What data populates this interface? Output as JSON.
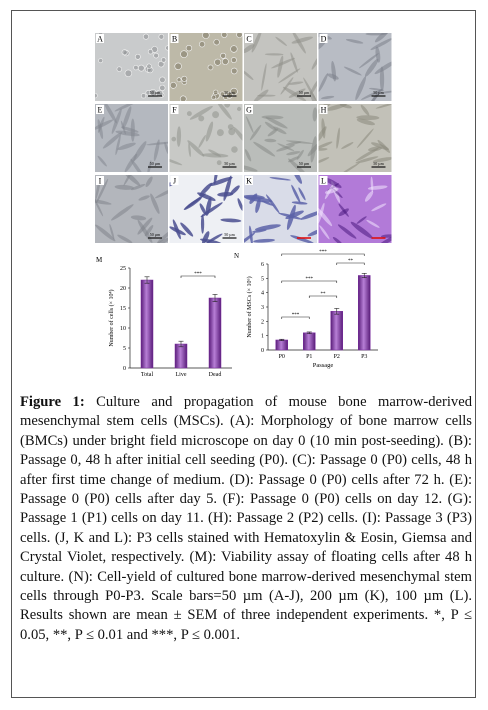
{
  "panels": [
    {
      "label": "A",
      "scale": "50 µm"
    },
    {
      "label": "B",
      "scale": "50 µm"
    },
    {
      "label": "C",
      "scale": "50 µm"
    },
    {
      "label": "D",
      "scale": "50 µm"
    },
    {
      "label": "E",
      "scale": "50 µm"
    },
    {
      "label": "F",
      "scale": "50 µm"
    },
    {
      "label": "G",
      "scale": "50 µm"
    },
    {
      "label": "H",
      "scale": "50 µm"
    },
    {
      "label": "I",
      "scale": "50 µm"
    },
    {
      "label": "J",
      "scale": "50 µm"
    },
    {
      "label": "K"
    },
    {
      "label": "L"
    }
  ],
  "chart_data": [
    {
      "type": "bar",
      "panel_label": "M",
      "y_label": "Number of cells (× 10⁴)",
      "categories": [
        "Total",
        "Live",
        "Dead"
      ],
      "series": [
        {
          "color": "#7a2e9e",
          "values": [
            22,
            6,
            17.5
          ],
          "errors": [
            0.8,
            0.7,
            0.9
          ]
        }
      ],
      "ylim": [
        0,
        25
      ],
      "yticks": [
        0,
        5,
        10,
        15,
        20,
        25
      ],
      "annotations": [
        "***"
      ]
    },
    {
      "type": "bar",
      "panel_label": "N",
      "y_label": "Number of MSCs (× 10⁶)",
      "x_label": "Passage",
      "categories": [
        "P0",
        "P1",
        "P2",
        "P3"
      ],
      "series": [
        {
          "color": "#7a2e9e",
          "values": [
            0.7,
            1.2,
            2.7,
            5.2
          ],
          "errors": [
            0.05,
            0.06,
            0.2,
            0.15
          ]
        }
      ],
      "ylim": [
        0,
        6
      ],
      "yticks": [
        0,
        1,
        2,
        3,
        4,
        5,
        6
      ],
      "annotations": [
        "***",
        "**",
        "**",
        "***",
        "***"
      ]
    }
  ],
  "caption": {
    "label": "Figure 1:",
    "text": "Culture and propagation of mouse bone marrow-derived mesenchymal stem cells (MSCs). (A): Morphology of bone marrow cells (BMCs) under bright field microscope on day 0 (10 min post-seeding). (B): Passage 0, 48 h after initial cell seeding (P0). (C): Passage 0 (P0) cells, 48 h after first time change of medium. (D): Passage 0 (P0) cells after 72 h. (E): Passage 0 (P0) cells after day 5. (F): Passage 0 (P0) cells on day 12. (G): Passage 1 (P1) cells on day 11. (H): Passage 2 (P2) cells. (I): Passage 3 (P3) cells. (J, K and L): P3 cells stained with Hematoxylin & Eosin, Giemsa and Crystal Violet, respectively. (M): Viability assay of floating cells after 48 h culture. (N): Cell-yield of cultured bone marrow-derived mesenchymal stem cells through P0-P3. Scale bars=50 µm (A-J), 200 µm (K), 100 µm (L). Results shown are mean ± SEM of three independent experiments. *, P ≤ 0.05, **, P ≤ 0.01 and ***, P ≤ 0.001."
  }
}
